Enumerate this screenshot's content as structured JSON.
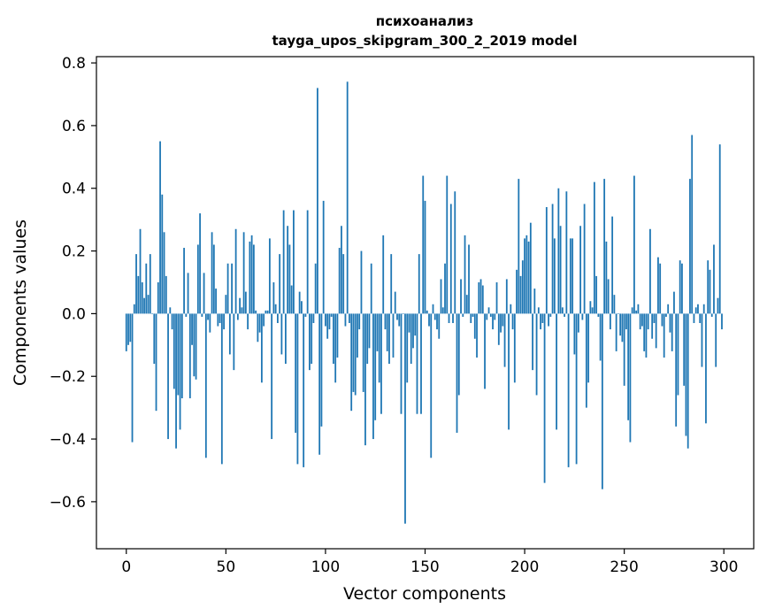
{
  "chart_data": {
    "type": "bar",
    "title": "психоанализ",
    "subtitle": "tayga_upos_skipgram_300_2_2019 model",
    "xlabel": "Vector components",
    "ylabel": "Components values",
    "xlim": [
      -15,
      315
    ],
    "ylim": [
      -0.75,
      0.82
    ],
    "xticks": [
      0,
      50,
      100,
      150,
      200,
      250,
      300
    ],
    "xtick_labels": [
      "0",
      "50",
      "100",
      "150",
      "200",
      "250",
      "300"
    ],
    "yticks": [
      -0.6,
      -0.4,
      -0.2,
      0.0,
      0.2,
      0.4,
      0.6,
      0.8
    ],
    "ytick_labels": [
      "−0.6",
      "−0.4",
      "−0.2",
      "0.0",
      "0.2",
      "0.4",
      "0.6",
      "0.8"
    ],
    "grid": false,
    "bar_color": "#1f77b4",
    "x": "0..299",
    "values": [
      -0.12,
      -0.1,
      -0.09,
      -0.41,
      0.03,
      0.19,
      0.12,
      0.27,
      0.1,
      0.05,
      0.16,
      0.06,
      0.19,
      0.0,
      -0.16,
      -0.31,
      0.1,
      0.55,
      0.38,
      0.26,
      0.12,
      -0.4,
      0.02,
      -0.05,
      -0.24,
      -0.43,
      -0.26,
      -0.37,
      -0.27,
      0.21,
      -0.01,
      0.13,
      -0.27,
      -0.1,
      -0.2,
      -0.21,
      0.22,
      0.32,
      -0.01,
      0.13,
      -0.46,
      -0.02,
      -0.06,
      0.26,
      0.22,
      0.08,
      -0.04,
      -0.03,
      -0.48,
      -0.05,
      0.06,
      0.16,
      -0.13,
      0.16,
      -0.18,
      0.27,
      -0.02,
      0.05,
      0.02,
      0.26,
      0.07,
      -0.05,
      0.23,
      0.25,
      0.22,
      0.01,
      -0.09,
      -0.06,
      -0.22,
      -0.04,
      0.01,
      0.01,
      0.24,
      -0.4,
      0.1,
      0.03,
      -0.03,
      0.19,
      -0.13,
      0.33,
      -0.16,
      0.28,
      0.22,
      0.09,
      0.33,
      -0.38,
      -0.48,
      0.07,
      0.04,
      -0.49,
      -0.01,
      0.33,
      -0.18,
      -0.16,
      -0.03,
      0.16,
      0.72,
      -0.45,
      -0.36,
      0.36,
      -0.04,
      -0.08,
      -0.05,
      -0.01,
      -0.16,
      -0.22,
      -0.14,
      0.21,
      0.28,
      0.19,
      -0.04,
      0.74,
      -0.03,
      -0.31,
      -0.25,
      -0.26,
      -0.14,
      -0.05,
      0.2,
      -0.25,
      -0.42,
      -0.16,
      -0.11,
      0.16,
      -0.4,
      -0.34,
      -0.12,
      -0.22,
      -0.32,
      0.25,
      -0.05,
      -0.12,
      -0.16,
      0.19,
      -0.14,
      0.07,
      -0.02,
      -0.04,
      -0.32,
      0.0,
      -0.67,
      -0.22,
      -0.06,
      -0.16,
      -0.11,
      -0.07,
      -0.32,
      0.19,
      -0.32,
      0.44,
      0.36,
      0.01,
      -0.04,
      -0.46,
      0.03,
      -0.02,
      -0.05,
      -0.08,
      0.11,
      0.02,
      0.16,
      0.44,
      -0.03,
      0.35,
      -0.03,
      0.39,
      -0.38,
      -0.26,
      0.11,
      -0.01,
      0.25,
      0.06,
      0.22,
      -0.03,
      -0.01,
      -0.08,
      -0.14,
      0.1,
      0.11,
      0.09,
      -0.24,
      -0.02,
      0.02,
      -0.01,
      -0.05,
      -0.02,
      0.1,
      -0.1,
      -0.06,
      -0.04,
      -0.17,
      0.11,
      -0.37,
      0.03,
      -0.05,
      -0.22,
      0.14,
      0.43,
      0.12,
      0.17,
      0.24,
      0.25,
      0.23,
      0.29,
      -0.18,
      0.08,
      -0.26,
      0.02,
      -0.05,
      -0.03,
      -0.54,
      0.34,
      -0.04,
      -0.01,
      0.35,
      0.24,
      -0.37,
      0.4,
      0.28,
      0.02,
      -0.01,
      0.39,
      -0.49,
      0.24,
      0.24,
      -0.13,
      -0.48,
      -0.06,
      0.28,
      -0.02,
      0.35,
      -0.3,
      -0.22,
      0.04,
      0.02,
      0.42,
      0.12,
      -0.01,
      -0.15,
      -0.56,
      0.43,
      0.23,
      0.11,
      -0.05,
      0.31,
      0.06,
      -0.12,
      0.0,
      -0.07,
      -0.09,
      -0.23,
      -0.05,
      -0.34,
      -0.41,
      0.02,
      0.44,
      0.01,
      0.03,
      -0.05,
      -0.04,
      -0.12,
      -0.14,
      -0.05,
      0.27,
      -0.08,
      -0.03,
      -0.11,
      0.18,
      0.16,
      -0.04,
      -0.14,
      -0.01,
      0.03,
      -0.06,
      -0.12,
      0.07,
      -0.36,
      -0.26,
      0.17,
      0.16,
      -0.23,
      -0.39,
      -0.43,
      0.43,
      0.57,
      -0.03,
      0.02,
      0.03,
      -0.03,
      -0.17,
      0.03,
      -0.35,
      0.17,
      0.14,
      -0.01,
      0.22,
      -0.17,
      0.05,
      0.54,
      -0.05
    ]
  }
}
